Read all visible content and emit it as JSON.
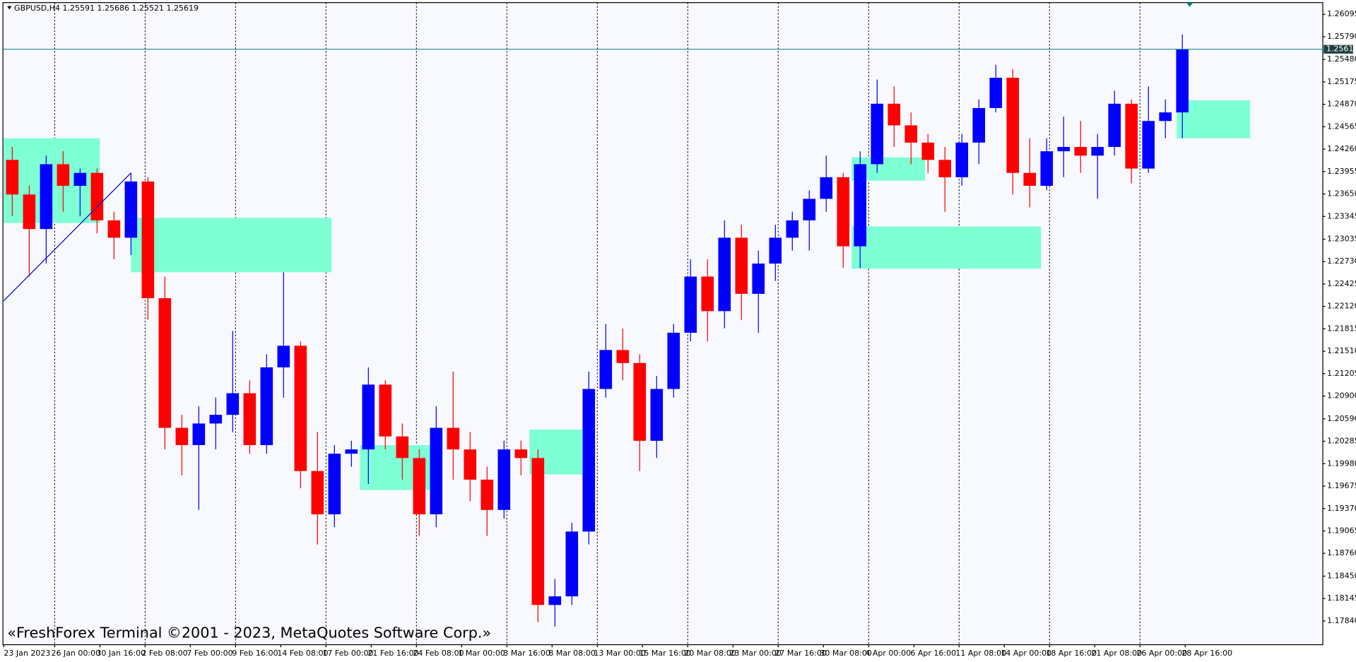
{
  "chart_data": {
    "type": "candlestick",
    "title": "GBPUSD,H4  1.25591 1.25686 1.25521 1.25619",
    "watermark": "«FreshForex Terminal ©2001 - 2023, MetaQuotes Software Corp.»",
    "x": [
      0,
      6,
      12,
      18,
      24,
      30,
      36,
      42,
      48,
      54,
      60,
      66,
      72,
      78,
      84,
      90,
      96,
      102,
      108,
      114,
      120,
      126,
      132,
      138,
      144,
      150,
      156,
      162,
      168,
      174,
      180,
      186,
      192,
      198,
      204,
      210,
      216,
      222,
      228,
      234,
      240,
      246,
      252,
      258,
      264,
      270,
      276,
      282,
      288,
      294,
      300,
      306,
      312,
      318,
      324,
      330,
      336,
      342,
      348,
      354,
      360,
      366,
      372,
      378,
      384,
      390,
      396,
      402,
      408,
      414
    ],
    "open": [
      1.24114,
      1.23643,
      1.23173,
      1.24055,
      1.23761,
      1.23937,
      1.23291,
      1.23055,
      1.2382,
      1.22232,
      1.20468,
      1.20233,
      1.20527,
      1.20645,
      1.20939,
      1.20233,
      1.21291,
      1.21585,
      1.1988,
      1.19292,
      1.20116,
      1.20174,
      1.21056,
      1.20351,
      1.20057,
      1.19292,
      1.20468,
      1.20174,
      1.19763,
      1.19351,
      1.20174,
      1.20057,
      1.18058,
      1.18175,
      1.19057,
      1.20997,
      1.21527,
      1.2135,
      1.20292,
      1.20997,
      1.21762,
      1.22526,
      1.22056,
      1.23055,
      1.22291,
      1.22703,
      1.23055,
      1.23291,
      1.23584,
      1.23878,
      1.22938,
      1.24055,
      1.24878,
      1.24584,
      1.24349,
      1.24114,
      1.23878,
      1.24349,
      1.24819,
      1.25231,
      1.23937,
      1.23761,
      1.24231,
      1.2429,
      1.24172,
      1.2429,
      1.24878,
      1.23996,
      1.24643,
      1.2476
    ],
    "high": [
      1.2429,
      1.23761,
      1.24172,
      1.24231,
      1.23996,
      1.23996,
      1.23408,
      1.23937,
      1.23878,
      1.22526,
      1.20645,
      1.20762,
      1.2088,
      1.21785,
      1.21115,
      1.21468,
      1.22585,
      1.21644,
      1.2041,
      1.20233,
      1.20292,
      1.21291,
      1.21115,
      1.20527,
      1.20174,
      1.20762,
      1.21233,
      1.2041,
      1.19939,
      1.20292,
      1.20292,
      1.20174,
      1.18411,
      1.19175,
      1.21233,
      1.21879,
      1.21821,
      1.21468,
      1.21174,
      1.21879,
      1.22761,
      1.22761,
      1.23291,
      1.23232,
      1.22879,
      1.23232,
      1.23408,
      1.23702,
      1.24172,
      1.23937,
      1.24231,
      1.25207,
      1.25113,
      1.2476,
      1.24466,
      1.2429,
      1.24466,
      1.24937,
      1.25407,
      1.25348,
      1.24408,
      1.24408,
      1.24702,
      1.24643,
      1.24466,
      1.25054,
      1.24937,
      1.25113,
      1.24937,
      1.25819
    ],
    "low": [
      1.23349,
      1.22526,
      1.22703,
      1.23408,
      1.23349,
      1.23114,
      1.22761,
      1.2282,
      1.21938,
      1.20174,
      1.19822,
      1.19351,
      1.20174,
      1.2041,
      1.20116,
      1.20116,
      1.2088,
      1.19645,
      1.18881,
      1.19116,
      1.19939,
      1.19704,
      1.20174,
      1.19763,
      1.18998,
      1.19116,
      1.19763,
      1.19469,
      1.18998,
      1.19234,
      1.19822,
      1.17823,
      1.17764,
      1.18058,
      1.18881,
      1.2088,
      1.21115,
      1.1988,
      1.20057,
      1.2088,
      1.21644,
      1.21644,
      1.21821,
      1.21938,
      1.21762,
      1.22467,
      1.22879,
      1.22879,
      1.23408,
      1.22644,
      1.22644,
      1.23937,
      1.2429,
      1.24055,
      1.23937,
      1.23408,
      1.23761,
      1.24055,
      1.2476,
      1.23643,
      1.23467,
      1.23702,
      1.23878,
      1.23937,
      1.23584,
      1.24172,
      1.23796,
      1.23937,
      1.24408,
      1.24408
    ],
    "close": [
      1.23643,
      1.23173,
      1.24055,
      1.23761,
      1.23937,
      1.23291,
      1.23055,
      1.2382,
      1.22232,
      1.20468,
      1.20233,
      1.20527,
      1.20645,
      1.20939,
      1.20233,
      1.21291,
      1.21585,
      1.1988,
      1.19292,
      1.20116,
      1.20174,
      1.21056,
      1.20351,
      1.20057,
      1.19292,
      1.20468,
      1.20174,
      1.19763,
      1.19351,
      1.20174,
      1.20057,
      1.18058,
      1.18175,
      1.19057,
      1.20997,
      1.21527,
      1.2135,
      1.20292,
      1.20997,
      1.21762,
      1.22526,
      1.22056,
      1.23055,
      1.22291,
      1.22703,
      1.23055,
      1.23291,
      1.23584,
      1.23878,
      1.22938,
      1.24055,
      1.24878,
      1.24584,
      1.24349,
      1.24114,
      1.23878,
      1.24349,
      1.24819,
      1.25231,
      1.23937,
      1.23761,
      1.24231,
      1.2429,
      1.24172,
      1.2429,
      1.24878,
      1.23996,
      1.24643,
      1.2476,
      1.25619
    ],
    "bull_color": "#0000ff",
    "bear_color": "#ff0000",
    "xlim": [
      -0.3,
      466.7
    ],
    "xticks": [
      {
        "value": 0,
        "label": "23 Jan 2023"
      },
      {
        "value": 18,
        "label": "26 Jan 00:00"
      },
      {
        "value": 34,
        "label": "30 Jan 16:00"
      },
      {
        "value": 50,
        "label": "2 Feb 08:00"
      },
      {
        "value": 66,
        "label": "7 Feb 00:00"
      },
      {
        "value": 82,
        "label": "9 Feb 16:00"
      },
      {
        "value": 98,
        "label": "14 Feb 08:00"
      },
      {
        "value": 114,
        "label": "17 Feb 00:00"
      },
      {
        "value": 130,
        "label": "21 Feb 16:00"
      },
      {
        "value": 146,
        "label": "24 Feb 08:00"
      },
      {
        "value": 162,
        "label": "1 Mar 00:00"
      },
      {
        "value": 178,
        "label": "3 Mar 16:00"
      },
      {
        "value": 194,
        "label": "8 Mar 08:00"
      },
      {
        "value": 210,
        "label": "13 Mar 00:00"
      },
      {
        "value": 226,
        "label": "15 Mar 16:00"
      },
      {
        "value": 242,
        "label": "20 Mar 08:00"
      },
      {
        "value": 258,
        "label": "23 Mar 00:00"
      },
      {
        "value": 274,
        "label": "27 Mar 16:00"
      },
      {
        "value": 290,
        "label": "30 Mar 08:00"
      },
      {
        "value": 306,
        "label": "4 Apr 00:00"
      },
      {
        "value": 322,
        "label": "6 Apr 16:00"
      },
      {
        "value": 338,
        "label": "11 Apr 08:00"
      },
      {
        "value": 354,
        "label": "14 Apr 00:00"
      },
      {
        "value": 370,
        "label": "18 Apr 16:00"
      },
      {
        "value": 386,
        "label": "21 Apr 08:00"
      },
      {
        "value": 402,
        "label": "26 Apr 00:00"
      },
      {
        "value": 418,
        "label": "28 Apr 16:00"
      }
    ],
    "ylim": [
      1.17517,
      1.26254
    ],
    "yticks": [
      1.26095,
      {
        "value": 1.2579,
        "label": "1.25790"
      },
      {
        "value": 1.2548,
        "label": "1.25480"
      },
      1.25175,
      {
        "value": 1.2487,
        "label": "1.24870"
      },
      1.24565,
      {
        "value": 1.2426,
        "label": "1.24260"
      },
      1.23955,
      {
        "value": 1.2365,
        "label": "1.23650"
      },
      1.23345,
      1.23035,
      {
        "value": 1.2273,
        "label": "1.22730"
      },
      1.22425,
      {
        "value": 1.2212,
        "label": "1.22120"
      },
      1.21815,
      {
        "value": 1.2151,
        "label": "1.21510"
      },
      1.21205,
      {
        "value": 1.209,
        "label": "1.20900"
      },
      {
        "value": 1.2059,
        "label": "1.20590"
      },
      1.20285,
      {
        "value": 1.1998,
        "label": "1.19980"
      },
      1.19675,
      {
        "value": 1.1937,
        "label": "1.19370"
      },
      1.19065,
      {
        "value": 1.1876,
        "label": "1.18760"
      },
      {
        "value": 1.1845,
        "label": "1.18450"
      },
      1.18145,
      {
        "value": 1.1784,
        "label": "1.17840"
      }
    ],
    "grid": true,
    "last_price": 1.25619,
    "last_price_color": "#008080",
    "zone_color": "#7fffd4",
    "zones": [
      {
        "x": [
          0,
          34
        ],
        "y": [
          1.24408,
          1.23255
        ]
      },
      {
        "x": [
          45,
          116
        ],
        "y": [
          1.23326,
          1.22585
        ]
      },
      {
        "x": [
          126,
          152
        ],
        "y": [
          1.20233,
          1.19622
        ]
      },
      {
        "x": [
          186,
          208
        ],
        "y": [
          1.20445,
          1.19833
        ]
      },
      {
        "x": [
          300,
          326
        ],
        "y": [
          1.24149,
          1.23831
        ]
      },
      {
        "x": [
          300,
          367
        ],
        "y": [
          1.23208,
          1.22632
        ]
      },
      {
        "x": [
          415,
          441
        ],
        "y": [
          1.24925,
          1.24408
        ]
      }
    ],
    "trendline": {
      "x": [
        0,
        45
      ],
      "y": [
        1.22197,
        1.23937
      ]
    },
    "trendline_color": "#0000cc"
  }
}
